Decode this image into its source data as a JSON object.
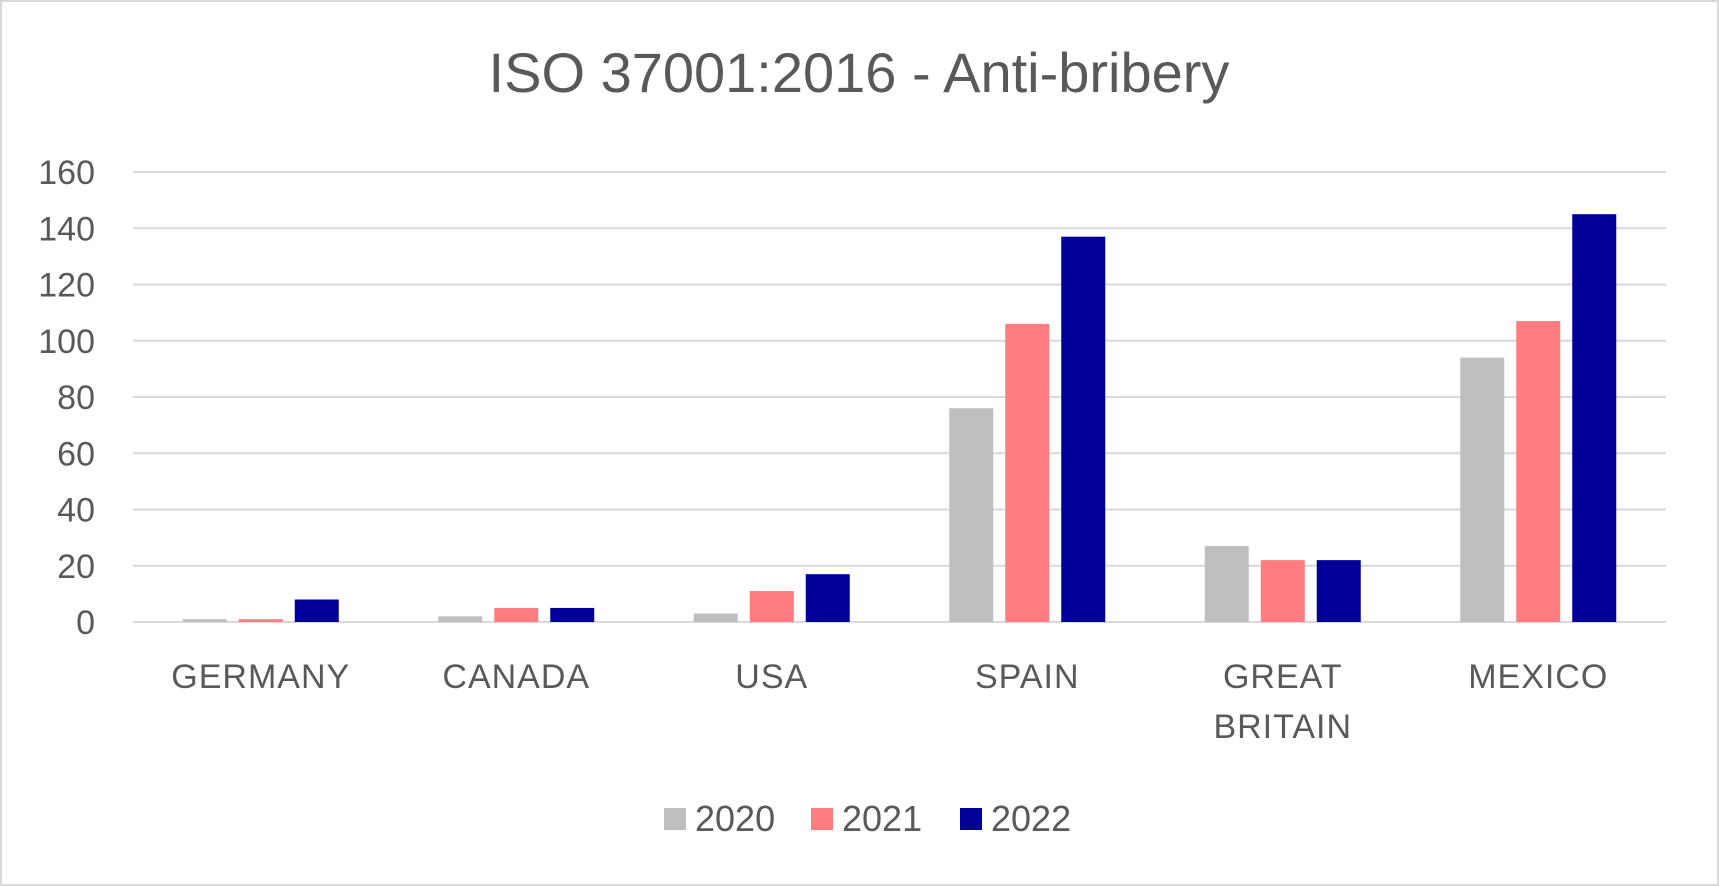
{
  "chart_data": {
    "type": "bar",
    "title": "ISO 37001:2016 - Anti-bribery",
    "xlabel": "",
    "ylabel": "",
    "ylim": [
      0,
      160
    ],
    "yticks": [
      "0",
      "20",
      "40",
      "60",
      "80",
      "100",
      "120",
      "140",
      "160"
    ],
    "categories": [
      "GERMANY",
      "CANADA",
      "USA",
      "SPAIN",
      "GREAT BRITAIN",
      "MEXICO"
    ],
    "series": [
      {
        "name": "2020",
        "color": "#bfbfbf",
        "values": [
          1,
          2,
          3,
          76,
          27,
          94
        ]
      },
      {
        "name": "2021",
        "color": "#ff7c80",
        "values": [
          1,
          5,
          11,
          106,
          22,
          107
        ]
      },
      {
        "name": "2022",
        "color": "#000099",
        "values": [
          8,
          5,
          17,
          137,
          22,
          145
        ]
      }
    ],
    "grid": true,
    "legend_position": "bottom"
  }
}
